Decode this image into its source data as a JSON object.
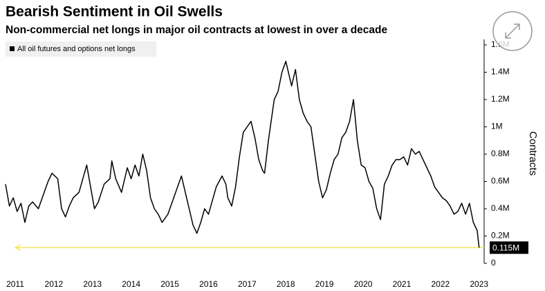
{
  "chart_data": {
    "type": "line",
    "title": "Bearish Sentiment in Oil Swells",
    "subtitle": "Non-commercial net longs in major oil contracts at lowest in over a decade",
    "y_axis_label": "Contracts",
    "xlim": [
      2010.75,
      2023.13
    ],
    "xticks": [
      2011,
      2012,
      2013,
      2014,
      2015,
      2016,
      2017,
      2018,
      2019,
      2020,
      2021,
      2022,
      2023
    ],
    "ylim": [
      0,
      1600000
    ],
    "yticks": [
      0,
      {
        "value": 200000,
        "label": "0.2M"
      },
      {
        "value": 400000,
        "label": "0.4M"
      },
      {
        "value": 600000,
        "label": "0.6M"
      },
      {
        "value": 800000,
        "label": "0.8M"
      },
      {
        "value": 1000000,
        "label": "1M"
      },
      {
        "value": 1200000,
        "label": "1.2M"
      },
      {
        "value": 1400000,
        "label": "1.4M"
      },
      {
        "value": 1600000,
        "label": "1.6M"
      }
    ],
    "x": [
      2010.75,
      2010.85,
      2010.95,
      2011.05,
      2011.15,
      2011.25,
      2011.35,
      2011.45,
      2011.6,
      2011.75,
      2011.85,
      2011.95,
      2012.1,
      2012.2,
      2012.3,
      2012.4,
      2012.5,
      2012.65,
      2012.75,
      2012.85,
      2012.95,
      2013.05,
      2013.15,
      2013.3,
      2013.45,
      2013.5,
      2013.6,
      2013.75,
      2013.9,
      2014.0,
      2014.1,
      2014.2,
      2014.3,
      2014.4,
      2014.5,
      2014.6,
      2014.7,
      2014.8,
      2014.95,
      2015.1,
      2015.2,
      2015.3,
      2015.4,
      2015.5,
      2015.6,
      2015.7,
      2015.8,
      2015.9,
      2016.0,
      2016.1,
      2016.2,
      2016.35,
      2016.45,
      2016.5,
      2016.6,
      2016.7,
      2016.8,
      2016.9,
      2017.0,
      2017.1,
      2017.2,
      2017.3,
      2017.4,
      2017.45,
      2017.55,
      2017.7,
      2017.8,
      2017.9,
      2018.0,
      2018.05,
      2018.15,
      2018.25,
      2018.35,
      2018.45,
      2018.55,
      2018.65,
      2018.75,
      2018.85,
      2018.95,
      2019.05,
      2019.15,
      2019.25,
      2019.35,
      2019.45,
      2019.55,
      2019.65,
      2019.75,
      2019.85,
      2019.95,
      2020.05,
      2020.15,
      2020.25,
      2020.35,
      2020.45,
      2020.55,
      2020.65,
      2020.75,
      2020.85,
      2020.95,
      2021.05,
      2021.15,
      2021.25,
      2021.35,
      2021.45,
      2021.55,
      2021.65,
      2021.75,
      2021.85,
      2021.95,
      2022.05,
      2022.15,
      2022.25,
      2022.35,
      2022.45,
      2022.55,
      2022.65,
      2022.75,
      2022.85,
      2022.95,
      2023.0
    ],
    "series": [
      {
        "name": "All oil futures and options net longs",
        "color": "#000000",
        "values": [
          580000,
          420000,
          480000,
          380000,
          440000,
          300000,
          420000,
          450000,
          400000,
          520000,
          600000,
          660000,
          620000,
          400000,
          340000,
          420000,
          480000,
          520000,
          620000,
          720000,
          560000,
          400000,
          450000,
          580000,
          620000,
          750000,
          620000,
          520000,
          700000,
          620000,
          720000,
          640000,
          800000,
          680000,
          480000,
          400000,
          360000,
          300000,
          360000,
          480000,
          560000,
          640000,
          520000,
          400000,
          280000,
          220000,
          300000,
          400000,
          360000,
          460000,
          560000,
          640000,
          580000,
          480000,
          420000,
          560000,
          780000,
          960000,
          1000000,
          1040000,
          920000,
          760000,
          680000,
          660000,
          900000,
          1200000,
          1260000,
          1400000,
          1480000,
          1420000,
          1300000,
          1420000,
          1200000,
          1100000,
          1040000,
          1000000,
          800000,
          600000,
          480000,
          540000,
          660000,
          760000,
          800000,
          920000,
          960000,
          1040000,
          1200000,
          900000,
          720000,
          700000,
          600000,
          550000,
          400000,
          320000,
          580000,
          640000,
          720000,
          760000,
          760000,
          780000,
          720000,
          840000,
          800000,
          820000,
          760000,
          700000,
          640000,
          560000,
          520000,
          480000,
          460000,
          420000,
          360000,
          380000,
          440000,
          360000,
          440000,
          300000,
          240000,
          115000
        ]
      }
    ],
    "annotation": {
      "value": 115000,
      "label": "0.115M"
    },
    "legend": "top-left",
    "grid": false
  }
}
